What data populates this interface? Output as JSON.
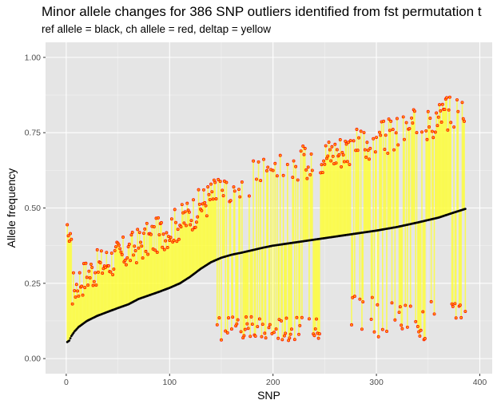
{
  "chart_data": {
    "type": "scatter",
    "title": "Minor allele changes for 386 SNP outliers identified from fst permutation t",
    "subtitle": "ref allele = black, ch allele = red, deltap = yellow",
    "xlabel": "SNP",
    "ylabel": "Allele frequency",
    "xlim": [
      -20,
      412
    ],
    "ylim": [
      -0.05,
      1.05
    ],
    "x_ticks": [
      0,
      100,
      200,
      300,
      400
    ],
    "y_ticks": [
      0.0,
      0.25,
      0.5,
      0.75,
      1.0
    ],
    "x_tick_labels": [
      "0",
      "100",
      "200",
      "300",
      "400"
    ],
    "y_tick_labels": [
      "0.00",
      "0.25",
      "0.50",
      "0.75",
      "1.00"
    ],
    "grid": true,
    "background": "#e5e5e5",
    "colors": {
      "ref": "#000000",
      "ch": "#ff0000",
      "ch_fill": "#ffa500",
      "deltap": "#ffff33"
    },
    "series": [
      {
        "role": "ref",
        "x_range": [
          1,
          386
        ],
        "values_at": [
          [
            1,
            0.055
          ],
          [
            3,
            0.06
          ],
          [
            5,
            0.075
          ],
          [
            8,
            0.09
          ],
          [
            12,
            0.105
          ],
          [
            20,
            0.125
          ],
          [
            30,
            0.142
          ],
          [
            40,
            0.155
          ],
          [
            50,
            0.168
          ],
          [
            60,
            0.18
          ],
          [
            70,
            0.198
          ],
          [
            80,
            0.21
          ],
          [
            90,
            0.222
          ],
          [
            100,
            0.235
          ],
          [
            110,
            0.25
          ],
          [
            120,
            0.272
          ],
          [
            130,
            0.298
          ],
          [
            140,
            0.32
          ],
          [
            150,
            0.335
          ],
          [
            160,
            0.345
          ],
          [
            170,
            0.352
          ],
          [
            180,
            0.36
          ],
          [
            190,
            0.368
          ],
          [
            200,
            0.375
          ],
          [
            220,
            0.385
          ],
          [
            240,
            0.395
          ],
          [
            260,
            0.405
          ],
          [
            280,
            0.415
          ],
          [
            300,
            0.425
          ],
          [
            320,
            0.437
          ],
          [
            340,
            0.452
          ],
          [
            360,
            0.468
          ],
          [
            375,
            0.485
          ],
          [
            386,
            0.497
          ]
        ]
      },
      {
        "role": "ch",
        "up_range": [
          0.12,
          0.32
        ],
        "down_block_1": [
          146,
          245
        ],
        "down_block_1_range": [
          0.06,
          0.14
        ],
        "down_block_2": [
          275,
          361
        ],
        "down_block_2_range": [
          0.06,
          0.21
        ],
        "down_block_3": [
          372,
          386
        ],
        "down_block_3_range": [
          0.13,
          0.2
        ],
        "down_fraction_block_1": 0.5,
        "down_fraction_block_2": 0.35,
        "down_fraction_block_3": 0.55,
        "seed": 17
      }
    ]
  }
}
